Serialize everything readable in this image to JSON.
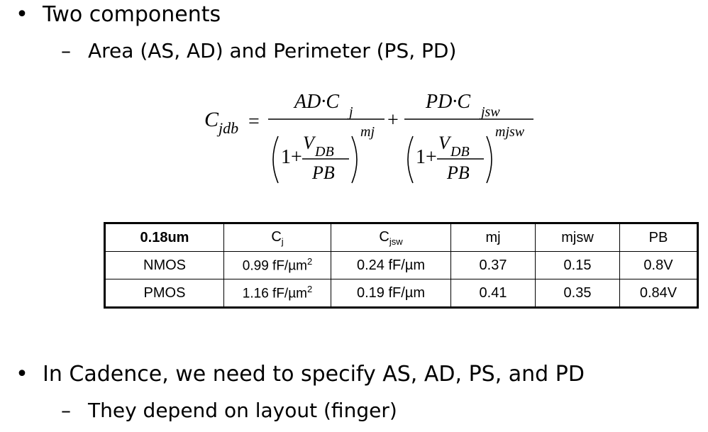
{
  "bullets": [
    {
      "text": "Two components",
      "sub": [
        "Area (AS, AD) and Perimeter (PS, PD)"
      ]
    },
    {
      "text": "In Cadence, we need to specify AS, AD, PS, and PD",
      "sub": [
        "They depend on layout (finger)"
      ]
    }
  ],
  "bullet_symbol": "•",
  "dash_symbol": "–",
  "formula": {
    "lhs_C": "C",
    "lhs_sub": "jdb",
    "eq": "=",
    "plus": "+",
    "t1_num_a": "AD·C",
    "t1_num_sub": "j",
    "t1_exp": "mj",
    "t2_num_a": "PD·C",
    "t2_num_sub": "jsw",
    "t2_exp": "mjsw",
    "one_plus": "1+",
    "v": "V",
    "v_sub": "DB",
    "pb": "PB"
  },
  "table": {
    "headers": [
      "0.18um",
      "C",
      "C",
      "mj",
      "mjsw",
      "PB"
    ],
    "header_subs": [
      "",
      "j",
      "jsw",
      "",
      "",
      ""
    ],
    "rows": [
      {
        "name": "NMOS",
        "cj": "0.99 fF/µm",
        "cj_sup": "2",
        "cjsw": "0.24 fF/µm",
        "mj": "0.37",
        "mjsw": "0.15",
        "pb": "0.8V"
      },
      {
        "name": "PMOS",
        "cj": "1.16 fF/µm",
        "cj_sup": "2",
        "cjsw": "0.19 fF/µm",
        "mj": "0.41",
        "mjsw": "0.35",
        "pb": "0.84V"
      }
    ]
  }
}
